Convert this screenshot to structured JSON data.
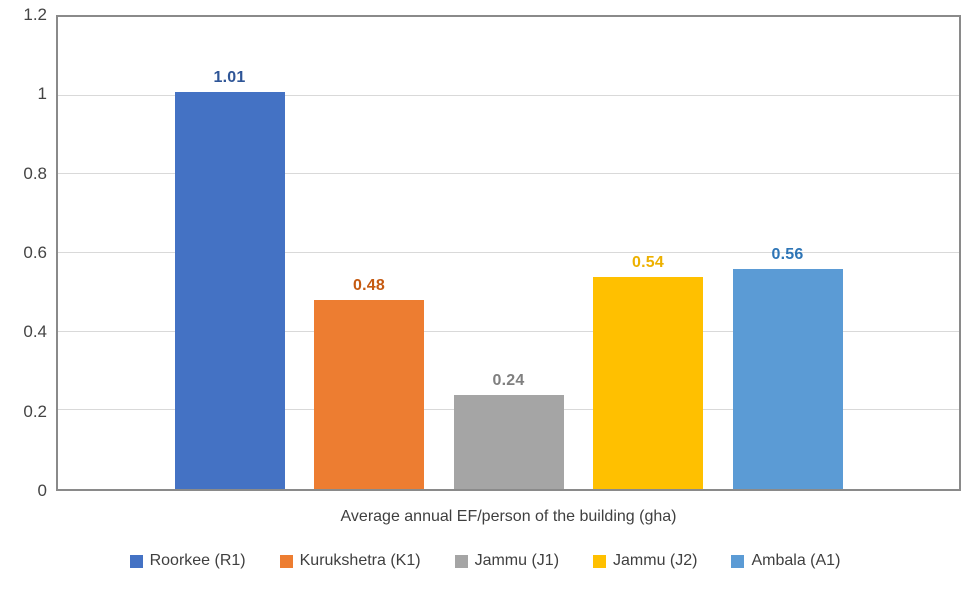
{
  "chart_data": {
    "type": "bar",
    "categories": [
      "Roorkee (R1)",
      "Kurukshetra (K1)",
      "Jammu (J1)",
      "Jammu (J2)",
      "Ambala (A1)"
    ],
    "values": [
      1.01,
      0.48,
      0.24,
      0.54,
      0.56
    ],
    "data_labels": [
      "1.01",
      "0.48",
      "0.24",
      "0.54",
      "0.56"
    ],
    "bar_colors": [
      "#4472C4",
      "#ED7D31",
      "#A5A5A5",
      "#FFC000",
      "#5B9BD5"
    ],
    "data_label_colors": [
      "#2E5597",
      "#C55A11",
      "#7F7F7F",
      "#EDB100",
      "#2E75B6"
    ],
    "title": "",
    "xlabel": "Average annual EF/person of the building (gha)",
    "ylabel": "",
    "ylim": [
      0,
      1.2
    ],
    "yticks": [
      0,
      0.2,
      0.4,
      0.6,
      0.8,
      1,
      1.2
    ],
    "ytick_labels": [
      "0",
      "0.2",
      "0.4",
      "0.6",
      "0.8",
      "1",
      "1.2"
    ],
    "grid": true,
    "legend_position": "bottom",
    "colors": {
      "plot_border": "#8a8a8a",
      "gridline": "#d9d9d9",
      "axis_text": "#444444",
      "label_text": "#3f3f3f"
    }
  }
}
